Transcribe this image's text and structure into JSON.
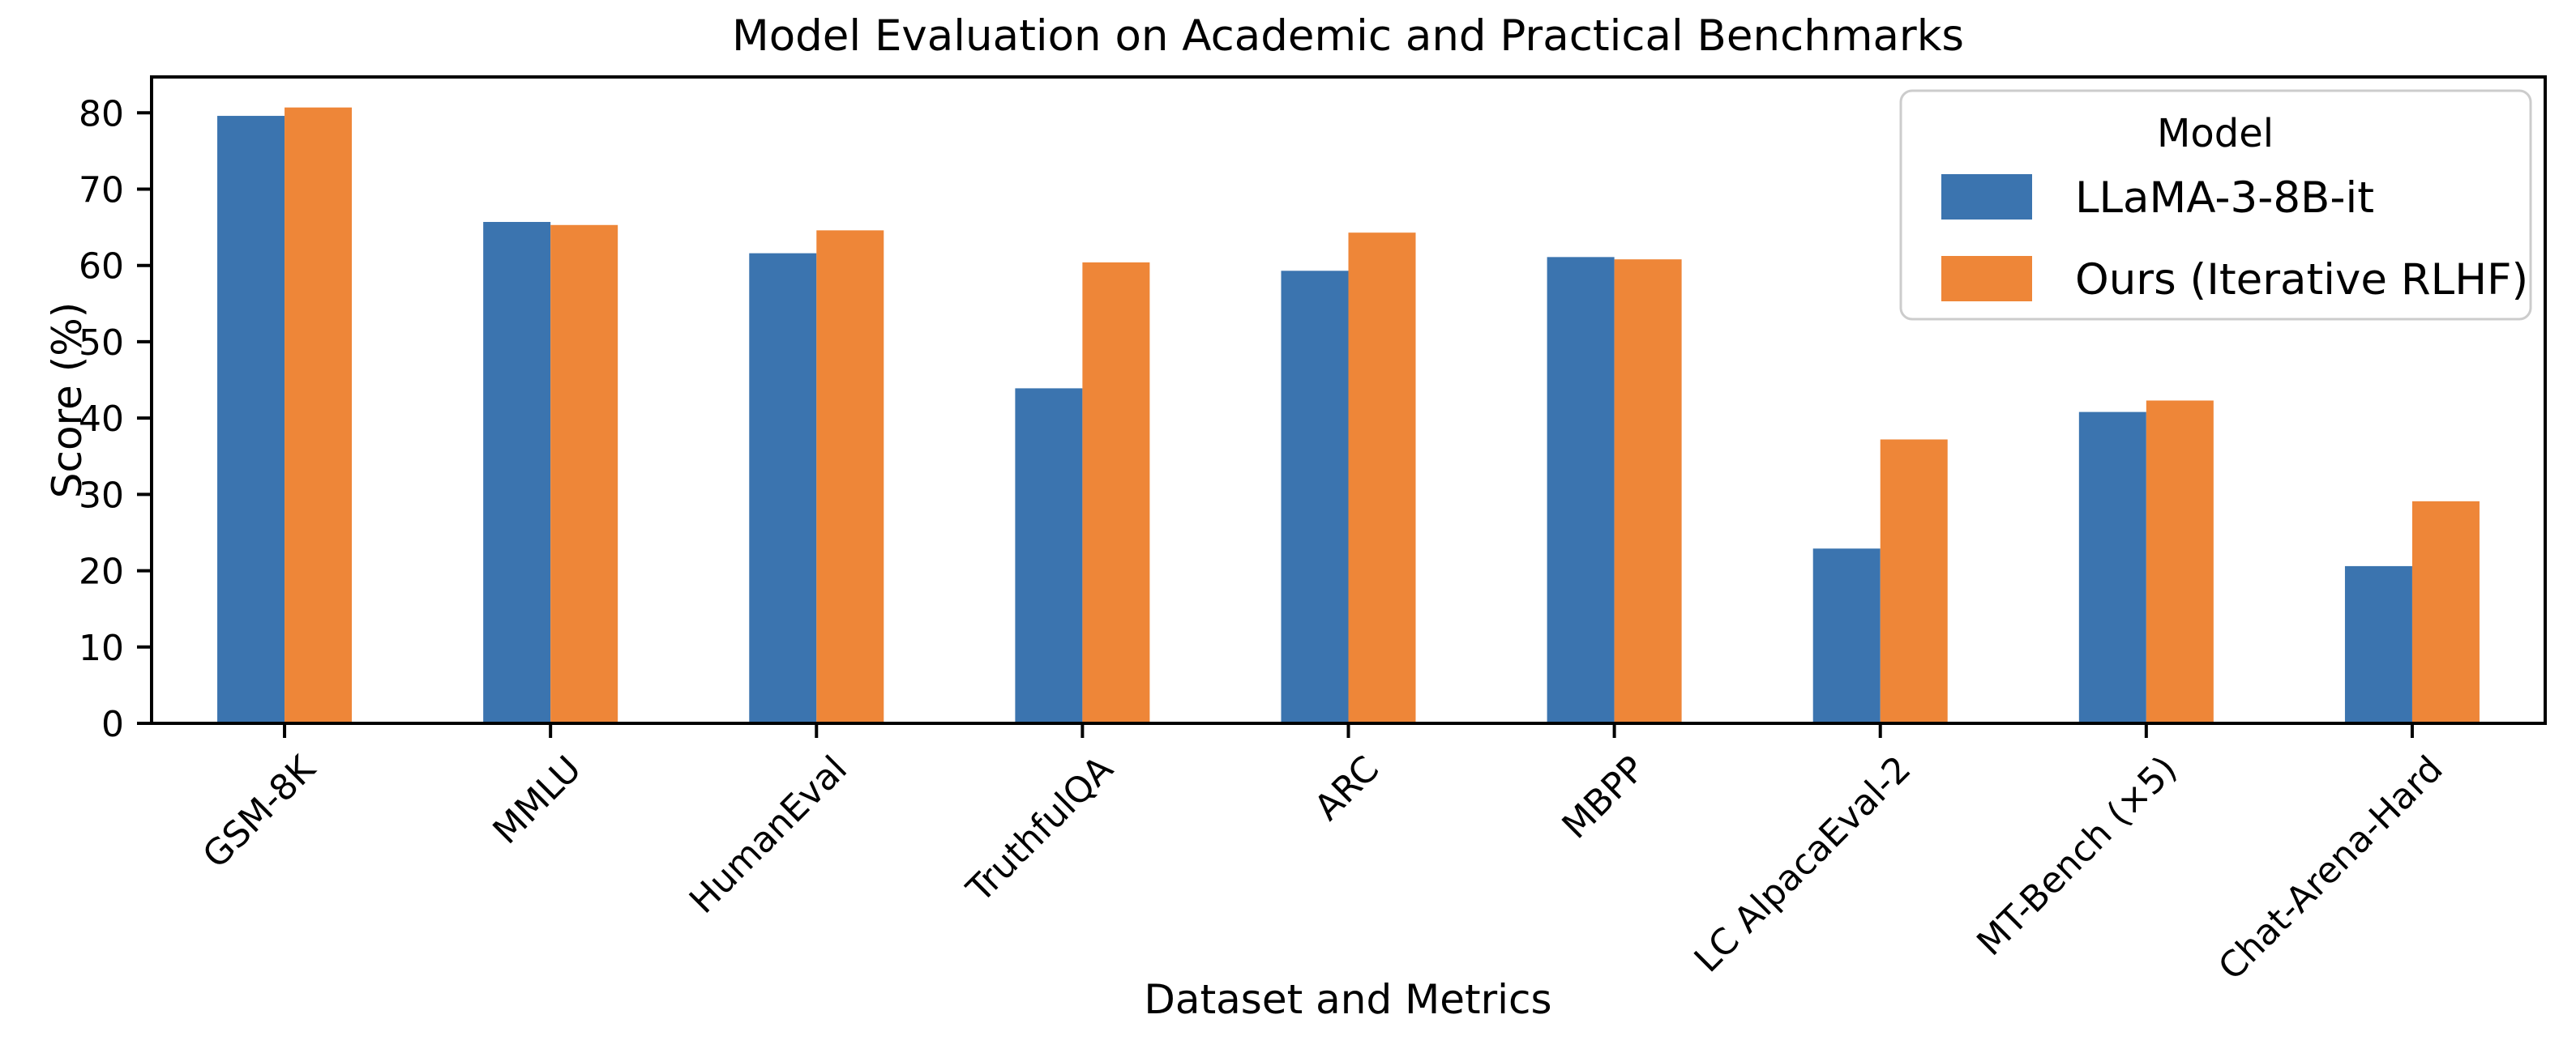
{
  "figure": {
    "background": "#ffffff",
    "text_color": "#000000",
    "spine_color": "#000000",
    "legend_border_color": "#cccccc"
  },
  "chart_data": {
    "type": "bar",
    "title": "Model Evaluation on Academic and Practical Benchmarks",
    "xlabel": "Dataset and Metrics",
    "ylabel": "Score (%)",
    "categories": [
      "GSM-8K",
      "MMLU",
      "HumanEval",
      "TruthfulQA",
      "ARC",
      "MBPP",
      "LC AlpacaEval-2",
      "MT-Bench (×5)",
      "Chat-Arena-Hard"
    ],
    "series": [
      {
        "name": "LLaMA-3-8B-it",
        "color": "#3b74af",
        "values": [
          79.6,
          65.7,
          61.6,
          43.9,
          59.3,
          61.1,
          22.9,
          40.8,
          20.6
        ]
      },
      {
        "name": "Ours (Iterative RLHF)",
        "color": "#ee8638",
        "values": [
          80.7,
          65.3,
          64.6,
          60.4,
          64.3,
          60.8,
          37.2,
          42.3,
          29.1
        ]
      }
    ],
    "ylim": [
      0,
      84.7
    ],
    "yticks": [
      0,
      10,
      20,
      30,
      40,
      50,
      60,
      70,
      80
    ],
    "x_tick_rotation": 45,
    "grid": false,
    "legend": {
      "title": "Model",
      "position": "upper right"
    }
  }
}
